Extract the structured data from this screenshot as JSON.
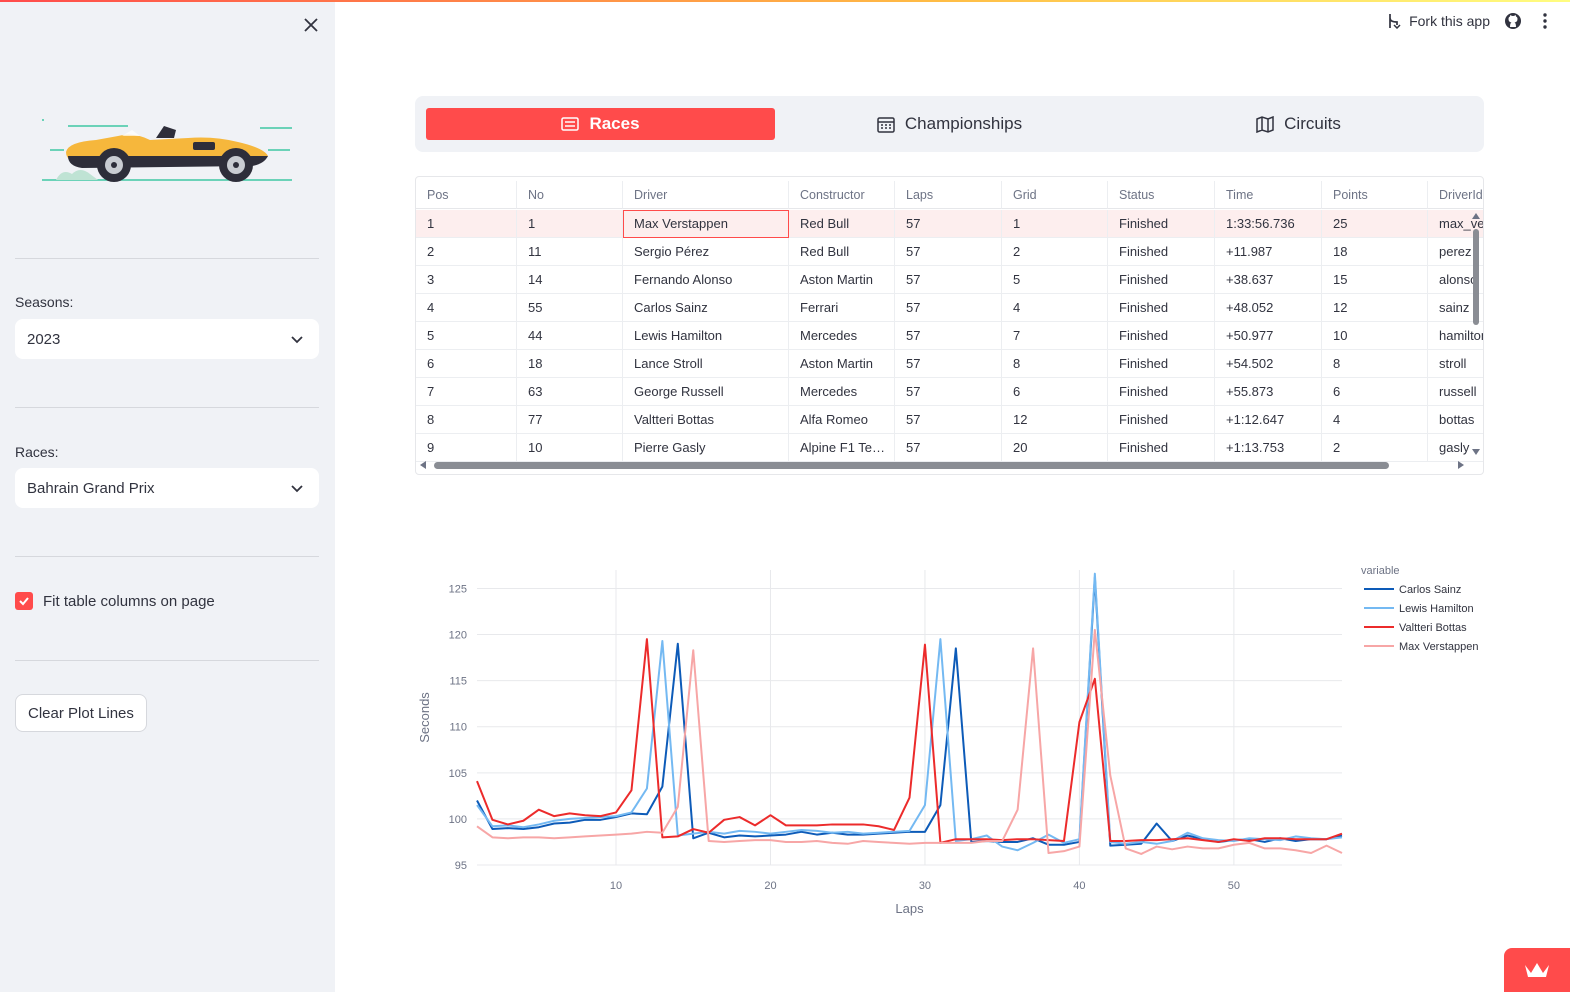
{
  "sidebar": {
    "seasons_label": "Seasons:",
    "season_value": "2023",
    "races_label": "Races:",
    "race_value": "Bahrain Grand Prix",
    "fit_label": "Fit table columns on page",
    "clear_label": "Clear Plot Lines"
  },
  "header": {
    "fork_label": "Fork this app"
  },
  "tabs": [
    {
      "label": "Races",
      "icon": "list-icon",
      "active": true
    },
    {
      "label": "Championships",
      "icon": "calendar-icon",
      "active": false
    },
    {
      "label": "Circuits",
      "icon": "map-icon",
      "active": false
    }
  ],
  "table": {
    "columns": [
      "Pos",
      "No",
      "Driver",
      "Constructor",
      "Laps",
      "Grid",
      "Status",
      "Time",
      "Points",
      "DriverId"
    ],
    "rows": [
      [
        "1",
        "1",
        "Max Verstappen",
        "Red Bull",
        "57",
        "1",
        "Finished",
        "1:33:56.736",
        "25",
        "max_verstappen"
      ],
      [
        "2",
        "11",
        "Sergio Pérez",
        "Red Bull",
        "57",
        "2",
        "Finished",
        "+11.987",
        "18",
        "perez"
      ],
      [
        "3",
        "14",
        "Fernando Alonso",
        "Aston Martin",
        "57",
        "5",
        "Finished",
        "+38.637",
        "15",
        "alonso"
      ],
      [
        "4",
        "55",
        "Carlos Sainz",
        "Ferrari",
        "57",
        "4",
        "Finished",
        "+48.052",
        "12",
        "sainz"
      ],
      [
        "5",
        "44",
        "Lewis Hamilton",
        "Mercedes",
        "57",
        "7",
        "Finished",
        "+50.977",
        "10",
        "hamilton"
      ],
      [
        "6",
        "18",
        "Lance Stroll",
        "Aston Martin",
        "57",
        "8",
        "Finished",
        "+54.502",
        "8",
        "stroll"
      ],
      [
        "7",
        "63",
        "George Russell",
        "Mercedes",
        "57",
        "6",
        "Finished",
        "+55.873",
        "6",
        "russell"
      ],
      [
        "8",
        "77",
        "Valtteri Bottas",
        "Alfa Romeo",
        "57",
        "12",
        "Finished",
        "+1:12.647",
        "4",
        "bottas"
      ],
      [
        "9",
        "10",
        "Pierre Gasly",
        "Alpine F1 Te…",
        "57",
        "20",
        "Finished",
        "+1:13.753",
        "2",
        "gasly"
      ]
    ]
  },
  "colors": {
    "accent": "#ff4b4b",
    "sidebar_bg": "#f0f2f6",
    "sainz": "#0d5bb8",
    "hamilton": "#74b9f2",
    "bottas": "#ec2b2b",
    "verstappen": "#f7a6a6"
  },
  "chart_data": {
    "type": "line",
    "title": "",
    "xlabel": "Laps",
    "ylabel": "Seconds",
    "legend_title": "variable",
    "xlim": [
      1,
      57
    ],
    "ylim": [
      95,
      127
    ],
    "xticks": [
      10,
      20,
      30,
      40,
      50
    ],
    "yticks": [
      95,
      100,
      105,
      110,
      115,
      120,
      125
    ],
    "grid": true,
    "legend_position": "right",
    "series": [
      {
        "name": "Carlos Sainz",
        "color": "#0d5bb8",
        "values": [
          102,
          98.9,
          99,
          98.9,
          99.1,
          99.5,
          99.6,
          99.9,
          99.9,
          100.2,
          100.6,
          100.5,
          103.5,
          119,
          97.9,
          98.5,
          98,
          98.2,
          98.1,
          98.2,
          98.3,
          98.6,
          98.3,
          98.5,
          98.3,
          98.3,
          98.4,
          98.5,
          98.6,
          98.6,
          101.5,
          118.5,
          97.5,
          97.6,
          97.5,
          97.5,
          97.9,
          97.2,
          97.2,
          97.5,
          126.2,
          97.1,
          97.2,
          97.3,
          99.5,
          97.6,
          98.2,
          97.8,
          97.5,
          97.7,
          97.8,
          97.5,
          97.9,
          97.6,
          97.8,
          97.8,
          98.2
        ]
      },
      {
        "name": "Lewis Hamilton",
        "color": "#74b9f2",
        "values": [
          101.5,
          99.2,
          99.3,
          99.1,
          99.4,
          99.8,
          100,
          100.1,
          100.2,
          100.3,
          100.7,
          103.3,
          119.3,
          98.2,
          98.4,
          98.6,
          98.4,
          98.7,
          98.6,
          98.4,
          98.6,
          98.8,
          98.7,
          98.5,
          98.6,
          98.4,
          98.5,
          98.6,
          98.7,
          101.5,
          119.5,
          97.6,
          97.8,
          98.2,
          97,
          96.6,
          97.4,
          98.3,
          97.4,
          97.8,
          126.6,
          97.5,
          97.3,
          97.5,
          97.3,
          97.6,
          98.5,
          97.9,
          97.7,
          97.6,
          97.9,
          97.8,
          97.7,
          98.1,
          97.9,
          97.8,
          98
        ]
      },
      {
        "name": "Valtteri Bottas",
        "color": "#ec2b2b",
        "values": [
          104.1,
          99.9,
          99.4,
          99.8,
          101,
          100.3,
          100.6,
          100.4,
          100.3,
          100.7,
          103.1,
          119.5,
          98,
          98.1,
          98.9,
          98.5,
          99.9,
          100.2,
          99.3,
          100.4,
          99.3,
          99.3,
          99.3,
          99.4,
          99.4,
          99.4,
          99.2,
          98.8,
          102.3,
          118.9,
          97.4,
          97.8,
          97.8,
          97.8,
          97.7,
          97.8,
          97.8,
          97.7,
          97.6,
          110.5,
          115.2,
          97.6,
          97.6,
          97.7,
          97.7,
          97.8,
          97.9,
          97.7,
          97.5,
          97.8,
          97.6,
          97.9,
          97.9,
          97.8,
          97.8,
          97.8,
          98.4
        ]
      },
      {
        "name": "Max Verstappen",
        "color": "#f7a6a6",
        "values": [
          99.2,
          98,
          97.9,
          98,
          98,
          97.9,
          98,
          98.1,
          98.2,
          98.3,
          98.4,
          98.6,
          98.5,
          101.3,
          118.3,
          97.6,
          97.5,
          97.6,
          97.7,
          97.7,
          97.5,
          97.5,
          97.6,
          97.4,
          97.3,
          97.6,
          97.5,
          97.4,
          97.3,
          97.4,
          97.4,
          97.4,
          97.4,
          97.6,
          97.6,
          101,
          118.5,
          96.3,
          96.5,
          97,
          120.5,
          104.7,
          96.8,
          96.2,
          97,
          96.7,
          97,
          96.8,
          96.8,
          97.2,
          97.4,
          96.8,
          96.8,
          96.6,
          96.3,
          97.1,
          96.3
        ]
      }
    ]
  }
}
